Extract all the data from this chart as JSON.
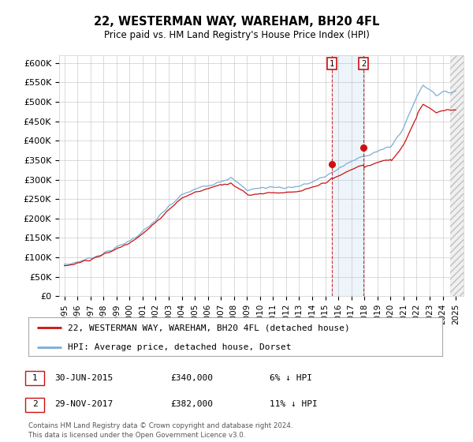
{
  "title": "22, WESTERMAN WAY, WAREHAM, BH20 4FL",
  "subtitle": "Price paid vs. HM Land Registry's House Price Index (HPI)",
  "ylim": [
    0,
    620000
  ],
  "yticks": [
    0,
    50000,
    100000,
    150000,
    200000,
    250000,
    300000,
    350000,
    400000,
    450000,
    500000,
    550000,
    600000
  ],
  "ytick_labels": [
    "£0",
    "£50K",
    "£100K",
    "£150K",
    "£200K",
    "£250K",
    "£300K",
    "£350K",
    "£400K",
    "£450K",
    "£500K",
    "£550K",
    "£600K"
  ],
  "hpi_color": "#7aaed6",
  "price_color": "#cc1111",
  "sale1_date": 2015.5,
  "sale1_price": 340000,
  "sale2_date": 2017.92,
  "sale2_price": 382000,
  "legend1": "22, WESTERMAN WAY, WAREHAM, BH20 4FL (detached house)",
  "legend2": "HPI: Average price, detached house, Dorset",
  "table_row1": [
    "1",
    "30-JUN-2015",
    "£340,000",
    "6% ↓ HPI"
  ],
  "table_row2": [
    "2",
    "29-NOV-2017",
    "£382,000",
    "11% ↓ HPI"
  ],
  "footer": "Contains HM Land Registry data © Crown copyright and database right 2024.\nThis data is licensed under the Open Government Licence v3.0.",
  "background_color": "#ffffff",
  "grid_color": "#cccccc"
}
